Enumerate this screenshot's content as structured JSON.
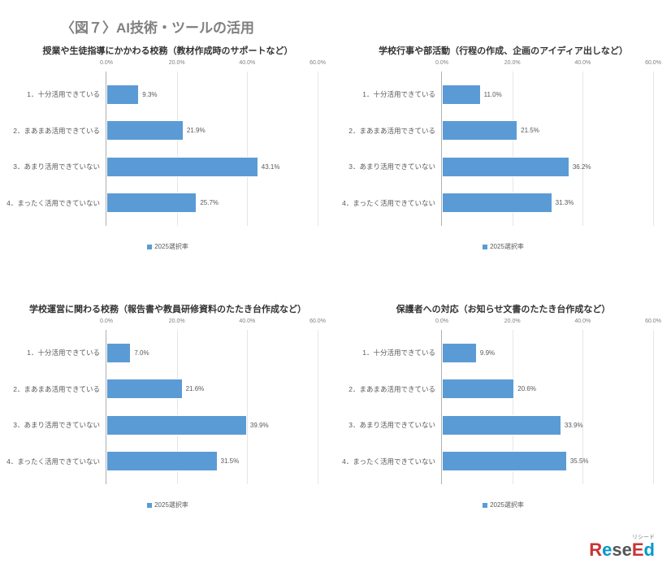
{
  "main_title": "〈図７〉AI技術・ツールの活用",
  "legend_label": "2025選択率",
  "bar_color": "#5b9bd5",
  "grid_color": "#e6e6e6",
  "axis_color": "#b0b0b0",
  "label_color": "#595959",
  "xticks": [
    0,
    20,
    40,
    60
  ],
  "xtick_labels": [
    "0.0%",
    "20.0%",
    "40.0%",
    "60.0%"
  ],
  "xlim": [
    0,
    60
  ],
  "category_labels": [
    "1．十分活用できている",
    "2．まあまあ活用できている",
    "3．あまり活用できていない",
    "4．まったく活用できていない"
  ],
  "panels": [
    {
      "subtitle": "授業や生徒指導にかかわる校務（教材作成時のサポートなど）",
      "values": [
        9.3,
        21.9,
        43.1,
        25.7
      ]
    },
    {
      "subtitle": "学校行事や部活動（行程の作成、企画のアイディア出しなど）",
      "values": [
        11.0,
        21.5,
        36.2,
        31.3
      ]
    },
    {
      "subtitle": "学校運営に関わる校務（報告書や教員研修資料のたたき台作成など）",
      "values": [
        7.0,
        21.6,
        39.9,
        31.5
      ]
    },
    {
      "subtitle": "保護者への対応（お知らせ文書のたたき台作成など）",
      "values": [
        9.9,
        20.6,
        33.9,
        35.5
      ]
    }
  ],
  "brand": {
    "text": "ReseEd",
    "sub": "リシード"
  }
}
